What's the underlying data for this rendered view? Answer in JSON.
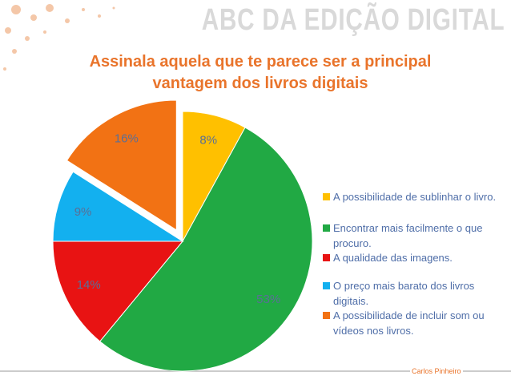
{
  "header": "ABC DA EDIÇÃO DIGITAL",
  "footer": "Carlos Pinheiro",
  "chart_data": {
    "type": "pie",
    "title": "Assinala aquela que te parece ser a principal vantagem dos livros digitais",
    "categories": [
      "A possibilidade de sublinhar o livro.",
      "Encontrar mais facilmente o que procuro.",
      "A qualidade das imagens.",
      "O preço mais barato dos livros digitais.",
      "A possibilidade de incluir som ou vídeos nos livros."
    ],
    "values": [
      8,
      53,
      14,
      9,
      16
    ],
    "value_labels": [
      "8%",
      "53%",
      "14%",
      "9%",
      "16%"
    ],
    "colors": [
      "#ffc000",
      "#21a944",
      "#e81313",
      "#13b0ef",
      "#f27214"
    ],
    "legend": "right"
  }
}
